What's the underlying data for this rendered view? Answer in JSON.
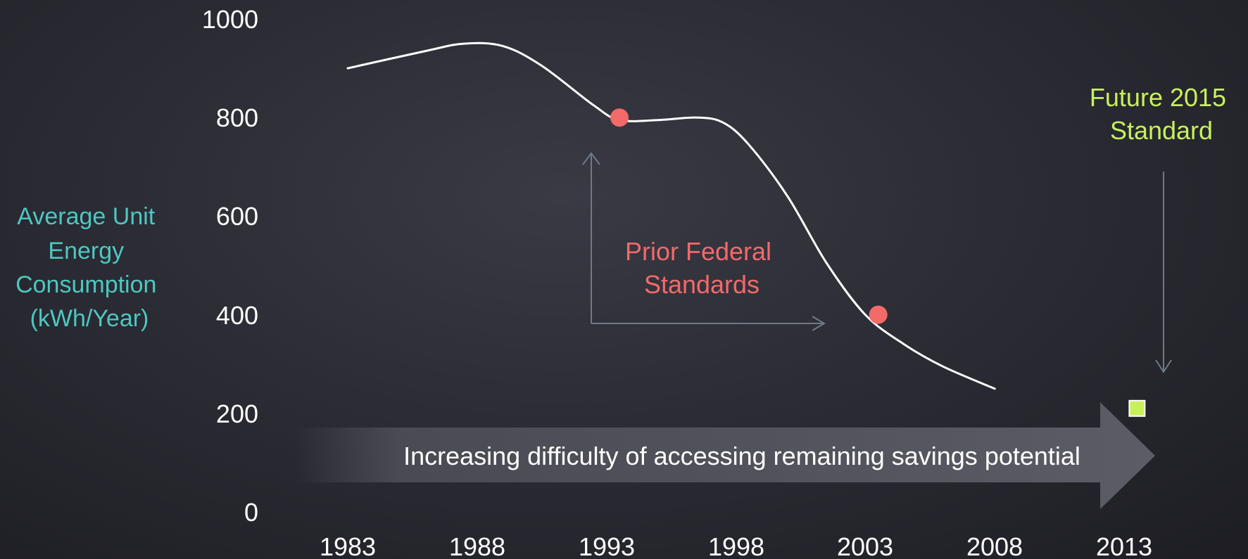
{
  "chart_data": {
    "type": "line",
    "ylabel": [
      "Average Unit",
      "Energy",
      "Consumption",
      "(kWh/Year)"
    ],
    "xlabel": "",
    "ylim": [
      0,
      1000
    ],
    "xlim": [
      1983,
      2013
    ],
    "y_ticks": [
      "1000",
      "800",
      "600",
      "400",
      "200",
      "0"
    ],
    "x_ticks": [
      "1983",
      "1988",
      "1993",
      "1998",
      "2003",
      "2008",
      "2013"
    ],
    "grid": false,
    "series": [
      {
        "x": [
          1983,
          1986,
          1987.5,
          1989,
          1990.5,
          1992.5,
          1993.5,
          1995,
          1996.5,
          1997.5,
          1998.5,
          2000,
          2001.5,
          2003,
          2004.5,
          2006,
          2008
        ],
        "values": [
          900,
          935,
          950,
          945,
          905,
          825,
          795,
          795,
          800,
          790,
          745,
          640,
          505,
          400,
          340,
          295,
          250
        ],
        "color": "#ffffff"
      }
    ],
    "standard_points": [
      {
        "x": 1993.5,
        "value": 800,
        "color": "#f26a6a"
      },
      {
        "x": 2003.5,
        "value": 400,
        "color": "#f26a6a"
      }
    ],
    "future_point": {
      "x": 2013.5,
      "value": 210,
      "color": "#c8f05c"
    },
    "annotations": {
      "prior": {
        "lines": [
          "Prior Federal",
          "Standards"
        ],
        "color": "#f26a6a"
      },
      "future": {
        "lines": [
          "Future 2015",
          "Standard"
        ],
        "color": "#c8f05c"
      },
      "arrow_text": "Increasing difficulty of accessing remaining savings potential"
    },
    "colors": {
      "ylabel": "#4cc8c0",
      "tick": "#ffffff",
      "pointer": "#6e7a86"
    }
  }
}
